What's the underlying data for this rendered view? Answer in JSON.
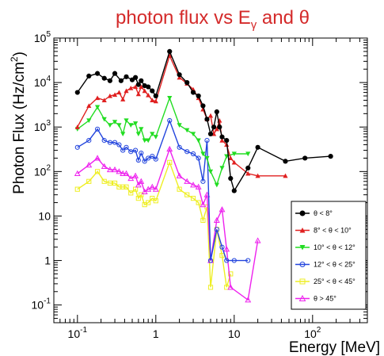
{
  "chart_data": {
    "type": "line",
    "title": "photon flux vs E",
    "title_sub": "γ",
    "title_tail": " and θ",
    "xlabel": "Energy [MeV]",
    "ylabel": "Photon Flux (Hz/cm",
    "ylabel_sup": "2",
    "ylabel_tail": ")",
    "xscale": "log",
    "yscale": "log",
    "xlim": [
      0.05,
      500
    ],
    "ylim": [
      0.04,
      100000
    ],
    "grid": false,
    "legend_placement": "right",
    "x_ticks": [
      {
        "value": 0.1,
        "base": "10",
        "exp": "-1"
      },
      {
        "value": 1,
        "text": "1"
      },
      {
        "value": 10,
        "text": "10"
      },
      {
        "value": 100,
        "base": "10",
        "exp": "2"
      }
    ],
    "y_ticks": [
      {
        "value": 0.1,
        "base": "10",
        "exp": "-1"
      },
      {
        "value": 1,
        "text": "1"
      },
      {
        "value": 10,
        "text": "10"
      },
      {
        "value": 100,
        "base": "10",
        "exp": "2"
      },
      {
        "value": 1000,
        "base": "10",
        "exp": "3"
      },
      {
        "value": 10000,
        "base": "10",
        "exp": "4"
      },
      {
        "value": 100000,
        "base": "10",
        "exp": "5"
      }
    ],
    "series": [
      {
        "name": "θ < 8°",
        "color": "#000000",
        "marker": "filled-circle",
        "points": [
          [
            0.1,
            6000
          ],
          [
            0.14,
            14000
          ],
          [
            0.18,
            16000
          ],
          [
            0.22,
            12500
          ],
          [
            0.26,
            11000
          ],
          [
            0.3,
            16000
          ],
          [
            0.36,
            11000
          ],
          [
            0.42,
            13500
          ],
          [
            0.5,
            11500
          ],
          [
            0.55,
            13000
          ],
          [
            0.6,
            9000
          ],
          [
            0.65,
            11000
          ],
          [
            0.72,
            8500
          ],
          [
            0.8,
            8000
          ],
          [
            0.9,
            6500
          ],
          [
            1.0,
            5000
          ],
          [
            1.5,
            50000
          ],
          [
            2.0,
            15000
          ],
          [
            2.5,
            10000
          ],
          [
            3.0,
            6000
          ],
          [
            3.5,
            5000
          ],
          [
            4.0,
            3000
          ],
          [
            4.5,
            1500
          ],
          [
            5.0,
            700
          ],
          [
            5.5,
            1000
          ],
          [
            6.0,
            2200
          ],
          [
            6.5,
            1000
          ],
          [
            7.0,
            600
          ],
          [
            8.0,
            500
          ],
          [
            9.0,
            70
          ],
          [
            10.0,
            37
          ],
          [
            15.0,
            120
          ],
          [
            20.0,
            350
          ],
          [
            45.0,
            170
          ],
          [
            80.0,
            200
          ],
          [
            170.0,
            220
          ]
        ]
      },
      {
        "name": "8° < θ < 10°",
        "color": "#e02020",
        "marker": "filled-triangle",
        "points": [
          [
            0.1,
            1000
          ],
          [
            0.14,
            3000
          ],
          [
            0.18,
            4500
          ],
          [
            0.22,
            4000
          ],
          [
            0.26,
            5000
          ],
          [
            0.3,
            5300
          ],
          [
            0.34,
            6000
          ],
          [
            0.38,
            4200
          ],
          [
            0.42,
            6500
          ],
          [
            0.48,
            7500
          ],
          [
            0.55,
            8000
          ],
          [
            0.6,
            5500
          ],
          [
            0.65,
            8000
          ],
          [
            0.72,
            6500
          ],
          [
            0.8,
            5200
          ],
          [
            0.9,
            4000
          ],
          [
            1.0,
            3800
          ],
          [
            1.5,
            40000
          ],
          [
            2.0,
            13000
          ],
          [
            2.5,
            9500
          ],
          [
            3.0,
            7000
          ],
          [
            3.5,
            4500
          ],
          [
            4.0,
            2500
          ],
          [
            4.5,
            1500
          ],
          [
            5.0,
            1800
          ],
          [
            5.5,
            700
          ],
          [
            6.0,
            900
          ],
          [
            6.5,
            1400
          ],
          [
            7.0,
            500
          ],
          [
            8.0,
            400
          ],
          [
            9.0,
            200
          ],
          [
            10.0,
            160
          ],
          [
            15.0,
            90
          ],
          [
            20.0,
            80
          ],
          [
            45.0,
            80
          ]
        ]
      },
      {
        "name": "10° < θ < 12°",
        "color": "#22dd22",
        "marker": "filled-down-triangle",
        "points": [
          [
            0.1,
            900
          ],
          [
            0.14,
            1400
          ],
          [
            0.18,
            2800
          ],
          [
            0.22,
            1500
          ],
          [
            0.26,
            1100
          ],
          [
            0.3,
            1300
          ],
          [
            0.34,
            1100
          ],
          [
            0.38,
            700
          ],
          [
            0.42,
            1400
          ],
          [
            0.48,
            1100
          ],
          [
            0.55,
            1200
          ],
          [
            0.6,
            700
          ],
          [
            0.65,
            900
          ],
          [
            0.72,
            500
          ],
          [
            0.8,
            500
          ],
          [
            0.9,
            700
          ],
          [
            1.0,
            600
          ],
          [
            1.5,
            4500
          ],
          [
            2.0,
            1100
          ],
          [
            2.5,
            850
          ],
          [
            3.0,
            700
          ],
          [
            3.5,
            500
          ],
          [
            4.0,
            250
          ],
          [
            4.5,
            200
          ],
          [
            5.0,
            100
          ],
          [
            6.0,
            50
          ],
          [
            7.0,
            120
          ],
          [
            8.0,
            220
          ],
          [
            10.0,
            250
          ],
          [
            15.0,
            250
          ]
        ]
      },
      {
        "name": "12° < θ < 25°",
        "color": "#2244dd",
        "marker": "open-circle",
        "points": [
          [
            0.1,
            350
          ],
          [
            0.14,
            500
          ],
          [
            0.18,
            900
          ],
          [
            0.22,
            500
          ],
          [
            0.26,
            450
          ],
          [
            0.3,
            450
          ],
          [
            0.34,
            400
          ],
          [
            0.38,
            300
          ],
          [
            0.42,
            350
          ],
          [
            0.48,
            280
          ],
          [
            0.55,
            300
          ],
          [
            0.6,
            180
          ],
          [
            0.65,
            260
          ],
          [
            0.72,
            170
          ],
          [
            0.8,
            200
          ],
          [
            0.9,
            220
          ],
          [
            1.0,
            190
          ],
          [
            1.5,
            1400
          ],
          [
            2.0,
            350
          ],
          [
            2.5,
            280
          ],
          [
            3.0,
            250
          ],
          [
            3.5,
            200
          ],
          [
            4.0,
            60
          ],
          [
            4.5,
            500
          ],
          [
            5.0,
            1
          ],
          [
            6.0,
            5
          ],
          [
            7.0,
            2
          ],
          [
            8.0,
            1
          ],
          [
            10.0,
            1
          ],
          [
            15.0,
            1
          ]
        ]
      },
      {
        "name": "25° < θ < 45°",
        "color": "#eeee22",
        "marker": "open-square",
        "points": [
          [
            0.1,
            40
          ],
          [
            0.14,
            60
          ],
          [
            0.18,
            100
          ],
          [
            0.22,
            60
          ],
          [
            0.26,
            55
          ],
          [
            0.3,
            55
          ],
          [
            0.34,
            45
          ],
          [
            0.38,
            45
          ],
          [
            0.42,
            45
          ],
          [
            0.48,
            33
          ],
          [
            0.55,
            40
          ],
          [
            0.6,
            25
          ],
          [
            0.65,
            30
          ],
          [
            0.72,
            18
          ],
          [
            0.8,
            20
          ],
          [
            0.9,
            25
          ],
          [
            1.0,
            22
          ],
          [
            1.5,
            160
          ],
          [
            2.0,
            40
          ],
          [
            2.5,
            30
          ],
          [
            3.0,
            25
          ],
          [
            3.5,
            20
          ],
          [
            4.0,
            8
          ],
          [
            4.5,
            16
          ],
          [
            5.0,
            0.25
          ],
          [
            6.0,
            5
          ],
          [
            7.0,
            1.3
          ],
          [
            8.0,
            0.25
          ],
          [
            9.0,
            0.5
          ]
        ]
      },
      {
        "name": "θ > 45°",
        "color": "#ee22ee",
        "marker": "open-triangle",
        "points": [
          [
            0.1,
            90
          ],
          [
            0.14,
            140
          ],
          [
            0.18,
            200
          ],
          [
            0.22,
            130
          ],
          [
            0.26,
            110
          ],
          [
            0.3,
            110
          ],
          [
            0.34,
            100
          ],
          [
            0.38,
            90
          ],
          [
            0.42,
            90
          ],
          [
            0.48,
            70
          ],
          [
            0.55,
            80
          ],
          [
            0.6,
            50
          ],
          [
            0.65,
            60
          ],
          [
            0.72,
            35
          ],
          [
            0.8,
            40
          ],
          [
            0.9,
            45
          ],
          [
            1.0,
            40
          ],
          [
            1.5,
            320
          ],
          [
            2.0,
            80
          ],
          [
            2.5,
            60
          ],
          [
            3.0,
            50
          ],
          [
            3.5,
            45
          ],
          [
            4.0,
            18
          ],
          [
            4.5,
            30
          ],
          [
            5.0,
            1
          ],
          [
            6.0,
            8
          ],
          [
            7.0,
            14
          ],
          [
            8.0,
            1.8
          ],
          [
            9.0,
            0.25
          ],
          [
            15.0,
            0.13
          ],
          [
            20.0,
            2.8
          ]
        ]
      }
    ]
  }
}
